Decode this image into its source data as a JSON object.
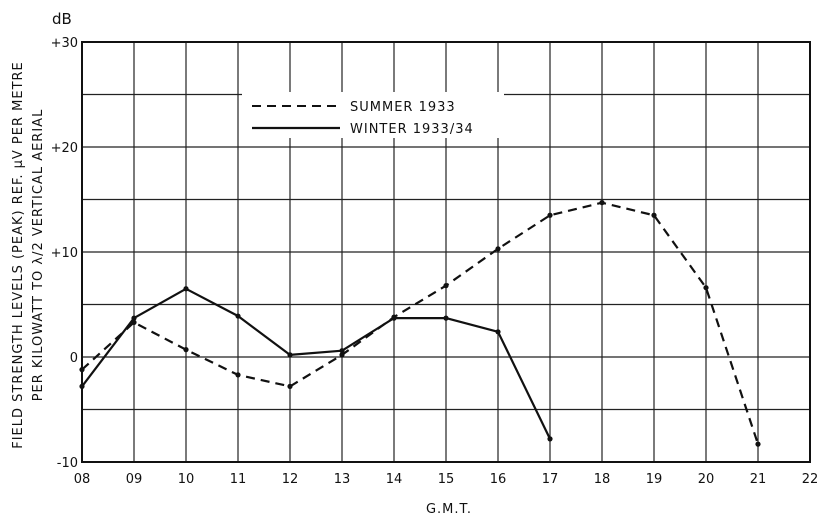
{
  "chart_data": {
    "type": "line",
    "title": "",
    "xlabel": "G.M.T.",
    "ylabel_line1": "FIELD STRENGTH LEVELS (PEAK) REF. µV PER METRE",
    "ylabel_line2": "PER KILOWATT TO λ/2 VERTICAL AERIAL",
    "y_unit": "dB",
    "x_ticks": [
      "08",
      "09",
      "10",
      "11",
      "12",
      "13",
      "14",
      "15",
      "16",
      "17",
      "18",
      "19",
      "20",
      "21",
      "22"
    ],
    "xlim": [
      8,
      22
    ],
    "y_ticks": [
      {
        "value": 30,
        "label": "+30"
      },
      {
        "value": 20,
        "label": "+20"
      },
      {
        "value": 10,
        "label": "+10"
      },
      {
        "value": 0,
        "label": "0"
      },
      {
        "value": -10,
        "label": "-10"
      }
    ],
    "ylim": [
      -10,
      30
    ],
    "grid": true,
    "legend_position": "top-left",
    "series": [
      {
        "name": "SUMMER 1933",
        "style": "dashed",
        "color": "#111111",
        "points": [
          {
            "x": 8,
            "y": -1.2
          },
          {
            "x": 9,
            "y": 3.3
          },
          {
            "x": 10,
            "y": 0.7
          },
          {
            "x": 11,
            "y": -1.7
          },
          {
            "x": 12,
            "y": -2.8
          },
          {
            "x": 13,
            "y": 0.2
          },
          {
            "x": 14,
            "y": 3.8
          },
          {
            "x": 15,
            "y": 6.8
          },
          {
            "x": 16,
            "y": 10.3
          },
          {
            "x": 17,
            "y": 13.5
          },
          {
            "x": 18,
            "y": 14.7
          },
          {
            "x": 19,
            "y": 13.5
          },
          {
            "x": 20,
            "y": 6.6
          },
          {
            "x": 21,
            "y": -8.3
          }
        ]
      },
      {
        "name": "WINTER 1933/34",
        "style": "solid",
        "color": "#111111",
        "points": [
          {
            "x": 8,
            "y": -2.8
          },
          {
            "x": 9,
            "y": 3.7
          },
          {
            "x": 10,
            "y": 6.5
          },
          {
            "x": 11,
            "y": 3.9
          },
          {
            "x": 12,
            "y": 0.2
          },
          {
            "x": 13,
            "y": 0.6
          },
          {
            "x": 14,
            "y": 3.7
          },
          {
            "x": 15,
            "y": 3.7
          },
          {
            "x": 16,
            "y": 2.4
          },
          {
            "x": 17,
            "y": -7.8
          }
        ]
      }
    ]
  }
}
